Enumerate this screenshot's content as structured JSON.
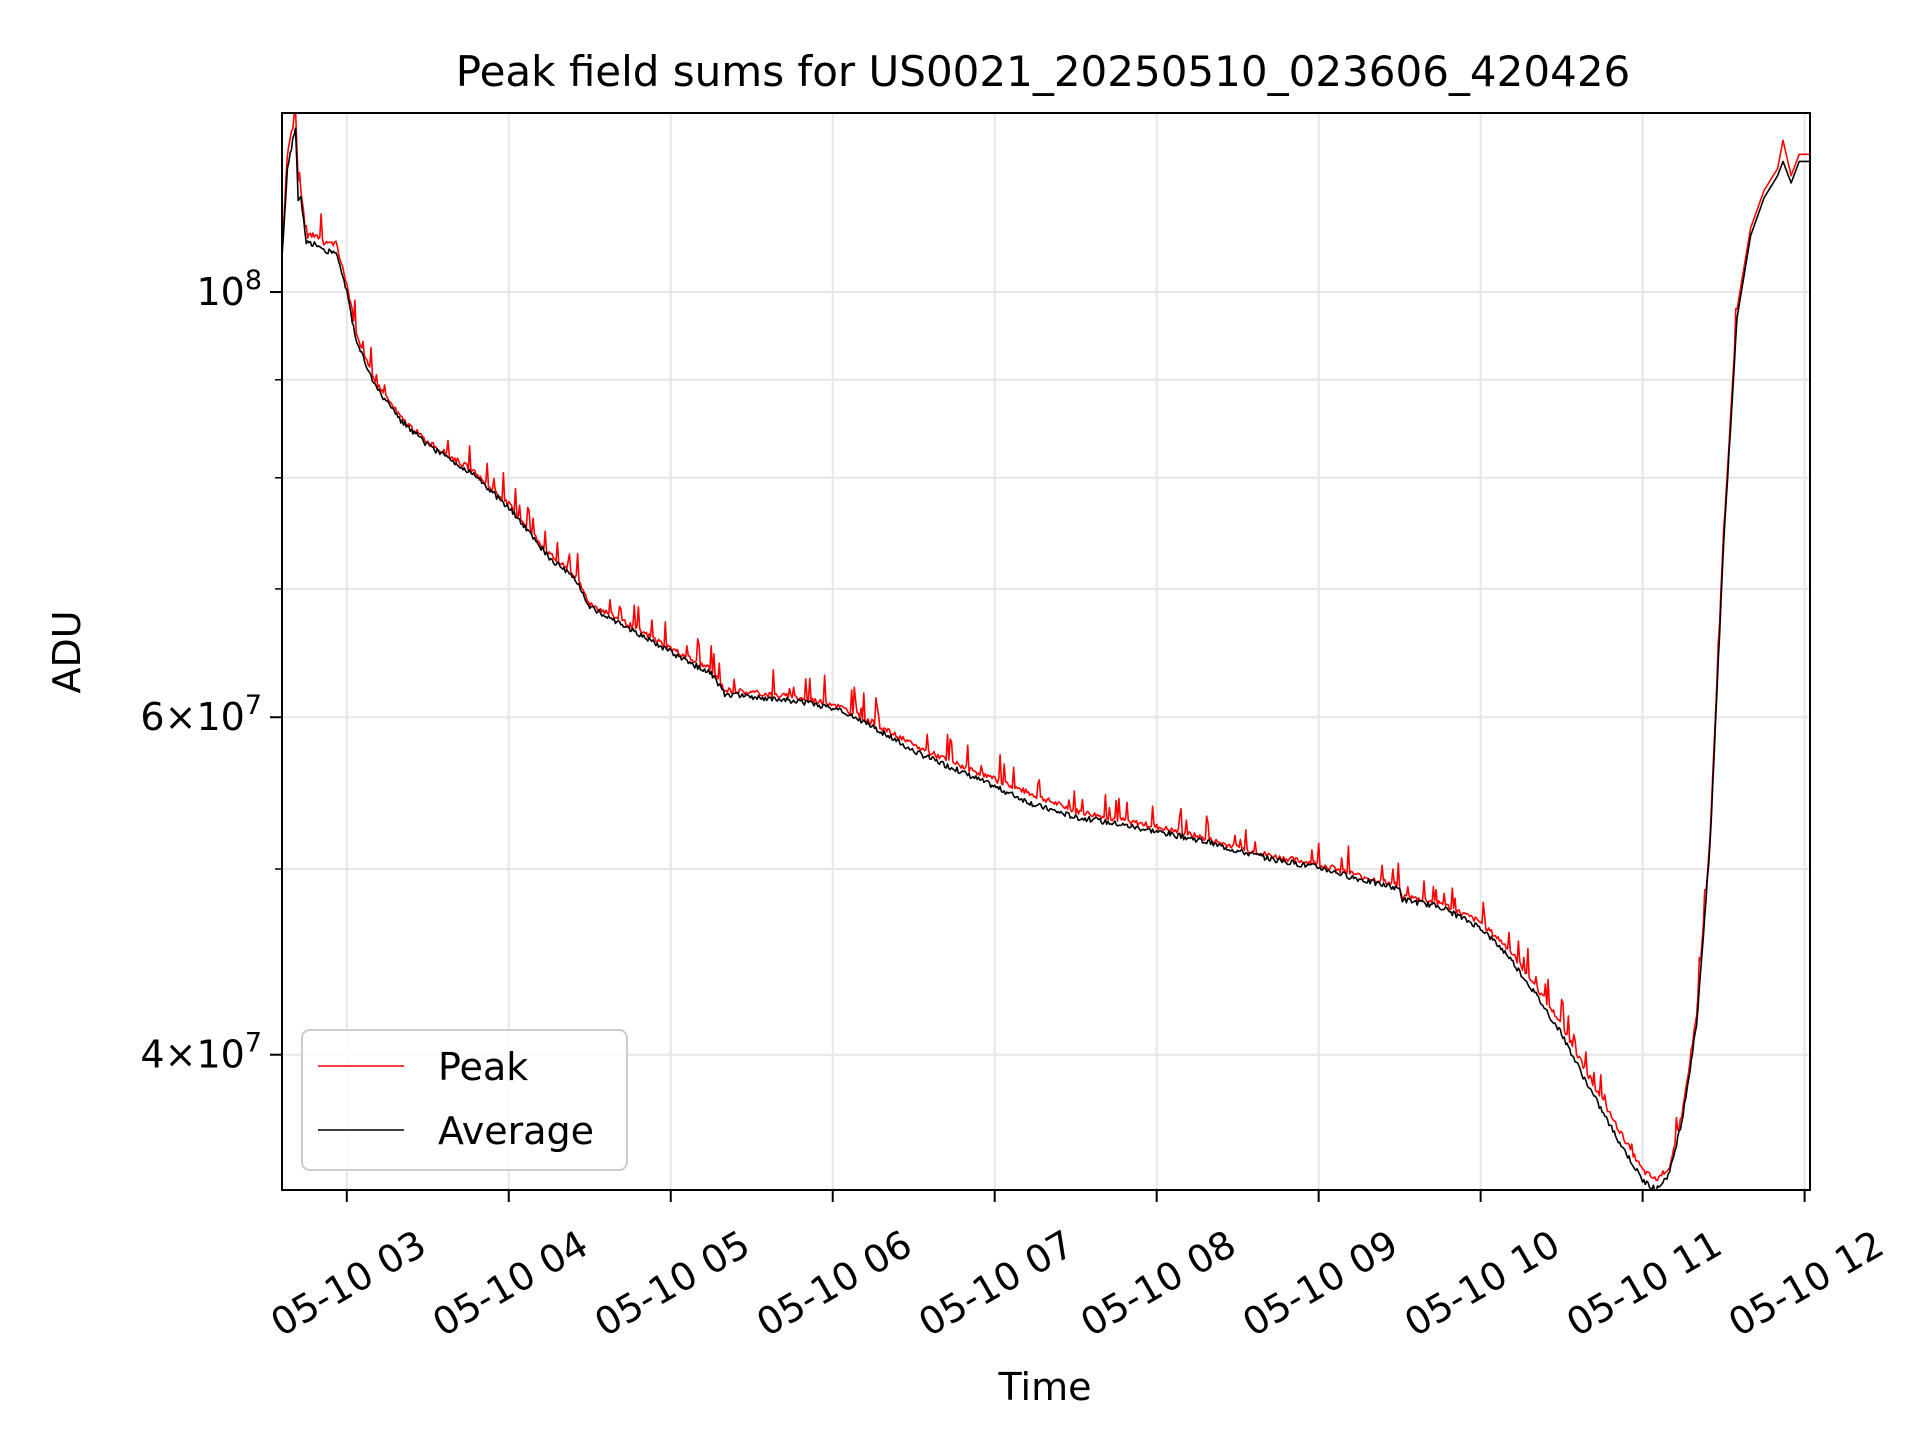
{
  "chart_data": {
    "type": "line",
    "title": "Peak field sums for US0021_20250510_023606_420426",
    "xlabel": "Time",
    "ylabel": "ADU",
    "yscale": "log",
    "xlim": [
      "05-10 02:36",
      "05-10 12:02"
    ],
    "ylim": [
      34000000,
      124000000
    ],
    "grid": true,
    "legend_location": "lower left",
    "x_ticks": [
      "05-10 03",
      "05-10 04",
      "05-10 05",
      "05-10 06",
      "05-10 07",
      "05-10 08",
      "05-10 09",
      "05-10 10",
      "05-10 11",
      "05-10 12"
    ],
    "y_ticks": [
      {
        "value": 100000000,
        "base": "10",
        "exp": "8"
      },
      {
        "value": 60000000,
        "mantissa": "6",
        "base": "10",
        "exp": "7"
      },
      {
        "value": 40000000,
        "mantissa": "4",
        "base": "10",
        "exp": "7"
      }
    ],
    "series": [
      {
        "name": "Peak",
        "color": "#ff0000",
        "x": [
          "05-10 02:36",
          "05-10 02:38",
          "05-10 02:40",
          "05-10 02:41",
          "05-10 02:42",
          "05-10 02:43",
          "05-10 02:45",
          "05-10 02:48",
          "05-10 02:52",
          "05-10 02:56",
          "05-10 03:00",
          "05-10 03:03",
          "05-10 03:06",
          "05-10 03:10",
          "05-10 03:15",
          "05-10 03:20",
          "05-10 03:30",
          "05-10 03:45",
          "05-10 04:00",
          "05-10 04:15",
          "05-10 04:25",
          "05-10 04:30",
          "05-10 04:45",
          "05-10 05:00",
          "05-10 05:15",
          "05-10 05:20",
          "05-10 05:30",
          "05-10 05:45",
          "05-10 06:00",
          "05-10 06:15",
          "05-10 06:30",
          "05-10 06:45",
          "05-10 07:00",
          "05-10 07:15",
          "05-10 07:30",
          "05-10 07:45",
          "05-10 08:00",
          "05-10 08:15",
          "05-10 08:30",
          "05-10 08:45",
          "05-10 09:00",
          "05-10 09:15",
          "05-10 09:30",
          "05-10 09:31",
          "05-10 09:45",
          "05-10 10:00",
          "05-10 10:10",
          "05-10 10:20",
          "05-10 10:30",
          "05-10 10:40",
          "05-10 10:50",
          "05-10 11:00",
          "05-10 11:05",
          "05-10 11:10",
          "05-10 11:15",
          "05-10 11:20",
          "05-10 11:25",
          "05-10 11:30",
          "05-10 11:35",
          "05-10 11:40",
          "05-10 11:45",
          "05-10 11:50",
          "05-10 11:52",
          "05-10 11:55",
          "05-10 11:58",
          "05-10 12:02"
        ],
        "y": [
          105000000,
          118000000,
          122000000,
          125000000,
          114000000,
          113000000,
          107000000,
          107000000,
          106000000,
          106000000,
          101000000,
          96000000,
          93000000,
          90000000,
          88000000,
          86000000,
          83500000,
          81000000,
          77500000,
          73000000,
          71000000,
          68800000,
          67000000,
          65200000,
          63500000,
          62000000,
          61800000,
          61500000,
          61000000,
          59600000,
          58000000,
          56800000,
          55700000,
          54600000,
          53600000,
          53100000,
          52600000,
          52000000,
          51300000,
          50700000,
          50300000,
          49600000,
          49000000,
          48400000,
          48000000,
          46900000,
          45500000,
          43500000,
          41500000,
          39000000,
          36800000,
          34800000,
          34400000,
          35000000,
          37500000,
          42000000,
          52000000,
          75000000,
          98000000,
          108000000,
          113000000,
          116000000,
          120000000,
          115000000,
          118000000,
          118000000
        ]
      },
      {
        "name": "Average",
        "color": "#000000",
        "x": [
          "05-10 02:36",
          "05-10 02:38",
          "05-10 02:40",
          "05-10 02:41",
          "05-10 02:42",
          "05-10 02:43",
          "05-10 02:45",
          "05-10 02:48",
          "05-10 02:52",
          "05-10 02:56",
          "05-10 03:00",
          "05-10 03:03",
          "05-10 03:06",
          "05-10 03:10",
          "05-10 03:15",
          "05-10 03:20",
          "05-10 03:30",
          "05-10 03:45",
          "05-10 04:00",
          "05-10 04:15",
          "05-10 04:25",
          "05-10 04:30",
          "05-10 04:45",
          "05-10 05:00",
          "05-10 05:15",
          "05-10 05:20",
          "05-10 05:30",
          "05-10 05:45",
          "05-10 06:00",
          "05-10 06:15",
          "05-10 06:30",
          "05-10 06:45",
          "05-10 07:00",
          "05-10 07:15",
          "05-10 07:30",
          "05-10 07:45",
          "05-10 08:00",
          "05-10 08:15",
          "05-10 08:30",
          "05-10 08:45",
          "05-10 09:00",
          "05-10 09:15",
          "05-10 09:30",
          "05-10 09:31",
          "05-10 09:45",
          "05-10 10:00",
          "05-10 10:10",
          "05-10 10:20",
          "05-10 10:30",
          "05-10 10:40",
          "05-10 10:50",
          "05-10 11:00",
          "05-10 11:05",
          "05-10 11:10",
          "05-10 11:15",
          "05-10 11:20",
          "05-10 11:25",
          "05-10 11:30",
          "05-10 11:35",
          "05-10 11:40",
          "05-10 11:45",
          "05-10 11:50",
          "05-10 11:52",
          "05-10 11:55",
          "05-10 11:58",
          "05-10 12:02"
        ],
        "y": [
          104000000,
          116000000,
          120000000,
          122000000,
          112000000,
          112000000,
          106000000,
          106000000,
          105000000,
          105000000,
          100000000,
          95000000,
          92500000,
          89500000,
          87500000,
          85700000,
          83200000,
          80700000,
          77200000,
          72700000,
          70700000,
          68500000,
          66700000,
          64900000,
          63200000,
          61700000,
          61500000,
          61200000,
          60700000,
          59300000,
          57600000,
          56400000,
          55200000,
          54000000,
          53200000,
          52800000,
          52300000,
          51800000,
          51100000,
          50500000,
          50100000,
          49400000,
          48800000,
          48200000,
          47800000,
          46600000,
          45100000,
          43100000,
          41000000,
          38500000,
          36300000,
          34400000,
          34000000,
          34700000,
          37200000,
          41500000,
          51500000,
          74000000,
          97000000,
          107000000,
          112000000,
          115000000,
          117000000,
          114000000,
          117000000,
          117000000
        ]
      }
    ]
  }
}
